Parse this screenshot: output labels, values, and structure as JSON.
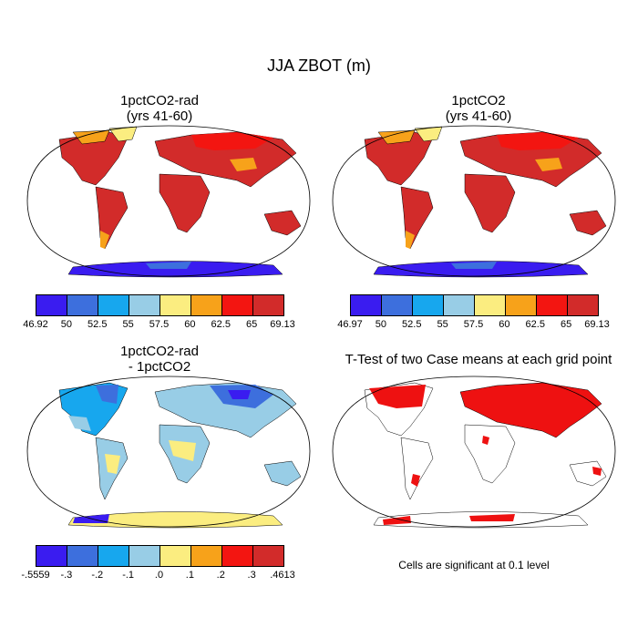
{
  "title": "JJA ZBOT (m)",
  "panels": [
    {
      "id": "p1",
      "title_line1": "1pctCO2-rad",
      "title_line2": "(yrs 41-60)"
    },
    {
      "id": "p2",
      "title_line1": "1pctCO2",
      "title_line2": "(yrs 41-60)"
    },
    {
      "id": "p3",
      "title_line1": "1pctCO2-rad",
      "title_line2": "- 1pctCO2"
    },
    {
      "id": "p4",
      "title_line1": "T-Test of two Case means at each grid point",
      "title_line2": ""
    }
  ],
  "colorbars": [
    {
      "id": "cb1",
      "colors": [
        "#3a1cf0",
        "#3d6fdd",
        "#17a7ee",
        "#98cde6",
        "#fbed80",
        "#f7a21a",
        "#f31511",
        "#d22b2a"
      ],
      "labels": [
        "46.92",
        "50",
        "52.5",
        "55",
        "57.5",
        "60",
        "62.5",
        "65",
        "69.13"
      ]
    },
    {
      "id": "cb2",
      "colors": [
        "#3a1cf0",
        "#3d6fdd",
        "#17a7ee",
        "#98cde6",
        "#fbed80",
        "#f7a21a",
        "#f31511",
        "#d22b2a"
      ],
      "labels": [
        "46.97",
        "50",
        "52.5",
        "55",
        "57.5",
        "60",
        "62.5",
        "65",
        "69.13"
      ]
    },
    {
      "id": "cb3",
      "colors": [
        "#3a1cf0",
        "#3d6fdd",
        "#17a7ee",
        "#98cde6",
        "#fbed80",
        "#f7a21a",
        "#f31511",
        "#d22b2a"
      ],
      "labels": [
        "-.5559",
        "-.3",
        "-.2",
        "-.1",
        ".0",
        ".1",
        ".2",
        ".3",
        ".4613"
      ]
    }
  ],
  "significance_note": "Cells are significant at 0.1 level",
  "colors": {
    "land_warm": "#d22b2a",
    "land_orange": "#f7a21a",
    "antarctica": "#3a1cf0",
    "diff_blue": "#98cde6",
    "diff_dark": "#3d6fdd",
    "sig_red": "#ee1111"
  }
}
